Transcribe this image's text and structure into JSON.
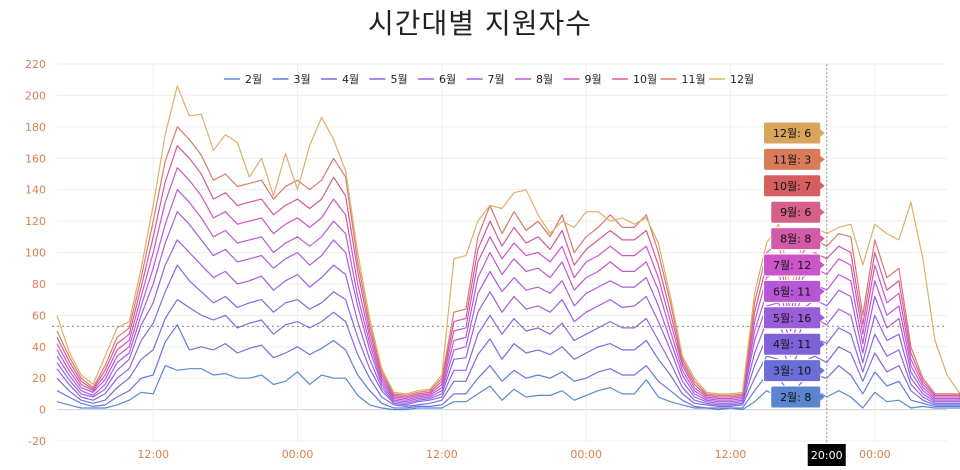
{
  "title": "시간대별 지원자수",
  "chart_data": {
    "type": "line",
    "title": "시간대별 지원자수",
    "ylim": [
      -20,
      220
    ],
    "yticks": [
      -20,
      0,
      20,
      40,
      60,
      80,
      100,
      120,
      140,
      160,
      180,
      200,
      220
    ],
    "xlim": [
      0,
      74
    ],
    "x_labels": [
      {
        "x": 8,
        "label": "12:00"
      },
      {
        "x": 20,
        "label": "00:00"
      },
      {
        "x": 32,
        "label": "12:00"
      },
      {
        "x": 44,
        "label": "00:00"
      },
      {
        "x": 56,
        "label": "12:00"
      },
      {
        "x": 68,
        "label": "00:00"
      }
    ],
    "grid": true,
    "legend_position": "top-center",
    "horizontal_ref": 53,
    "cursor": {
      "x": 64,
      "label": "20:00"
    },
    "series": [
      {
        "name": "2월",
        "color": "#5b8ad4",
        "values": [
          5,
          3,
          1,
          1,
          1,
          3,
          6,
          11,
          10,
          28,
          25,
          26,
          26,
          22,
          23,
          20,
          20,
          22,
          16,
          18,
          24,
          16,
          22,
          20,
          20,
          9,
          3,
          1,
          0,
          0,
          1,
          1,
          1,
          5,
          5,
          10,
          15,
          6,
          13,
          8,
          9,
          9,
          12,
          6,
          9,
          12,
          14,
          10,
          10,
          19,
          8,
          5,
          3,
          1,
          1,
          0,
          1,
          0,
          5,
          12,
          8,
          3,
          9,
          13,
          8,
          12,
          8,
          1,
          11,
          5,
          6,
          1,
          2,
          1,
          1,
          1,
          0
        ]
      },
      {
        "name": "3월",
        "color": "#6877e0",
        "values": [
          12,
          8,
          4,
          2,
          3,
          8,
          12,
          20,
          22,
          43,
          54,
          38,
          40,
          38,
          42,
          36,
          39,
          41,
          33,
          36,
          40,
          35,
          39,
          44,
          38,
          22,
          12,
          4,
          1,
          1,
          2,
          2,
          3,
          10,
          10,
          20,
          28,
          18,
          25,
          20,
          22,
          20,
          24,
          18,
          20,
          24,
          26,
          22,
          22,
          28,
          18,
          12,
          6,
          2,
          1,
          1,
          1,
          1,
          12,
          22,
          20,
          10,
          18,
          22,
          20,
          28,
          22,
          10,
          24,
          15,
          18,
          6,
          4,
          2,
          2,
          2,
          1
        ]
      },
      {
        "name": "4월",
        "color": "#7a6de0",
        "values": [
          20,
          12,
          6,
          4,
          6,
          14,
          20,
          32,
          38,
          58,
          70,
          65,
          60,
          57,
          60,
          52,
          55,
          57,
          48,
          54,
          56,
          52,
          56,
          62,
          56,
          35,
          20,
          8,
          3,
          2,
          3,
          4,
          6,
          18,
          18,
          35,
          45,
          32,
          42,
          36,
          38,
          35,
          40,
          32,
          36,
          40,
          42,
          38,
          38,
          44,
          32,
          22,
          10,
          4,
          3,
          2,
          2,
          3,
          20,
          34,
          32,
          18,
          30,
          34,
          30,
          40,
          36,
          18,
          36,
          24,
          28,
          12,
          6,
          3,
          3,
          3,
          3
        ]
      },
      {
        "name": "5월",
        "color": "#8b67e0",
        "values": [
          26,
          16,
          8,
          6,
          10,
          20,
          26,
          44,
          55,
          75,
          92,
          82,
          75,
          68,
          72,
          65,
          68,
          70,
          62,
          68,
          70,
          64,
          68,
          75,
          70,
          46,
          26,
          12,
          4,
          3,
          5,
          6,
          8,
          25,
          25,
          48,
          60,
          48,
          58,
          50,
          52,
          48,
          55,
          44,
          48,
          52,
          56,
          52,
          52,
          58,
          44,
          30,
          14,
          6,
          4,
          3,
          3,
          4,
          28,
          46,
          44,
          26,
          42,
          46,
          42,
          52,
          48,
          24,
          48,
          34,
          38,
          16,
          8,
          4,
          4,
          4,
          4
        ]
      },
      {
        "name": "6월",
        "color": "#9a62de",
        "values": [
          30,
          19,
          10,
          8,
          13,
          25,
          32,
          54,
          68,
          92,
          108,
          100,
          92,
          84,
          88,
          80,
          82,
          85,
          76,
          82,
          86,
          78,
          84,
          92,
          86,
          56,
          32,
          14,
          5,
          4,
          6,
          7,
          10,
          32,
          33,
          62,
          75,
          62,
          72,
          64,
          66,
          62,
          70,
          56,
          62,
          66,
          70,
          65,
          66,
          72,
          56,
          38,
          18,
          8,
          5,
          4,
          4,
          5,
          36,
          56,
          56,
          34,
          54,
          58,
          54,
          64,
          60,
          30,
          60,
          44,
          48,
          20,
          10,
          5,
          5,
          5,
          5
        ]
      },
      {
        "name": "7월",
        "color": "#a95edc",
        "values": [
          34,
          22,
          12,
          9,
          16,
          30,
          36,
          60,
          80,
          106,
          126,
          118,
          108,
          98,
          102,
          94,
          96,
          98,
          90,
          96,
          100,
          92,
          98,
          108,
          100,
          66,
          38,
          16,
          6,
          5,
          7,
          8,
          12,
          38,
          40,
          74,
          88,
          75,
          84,
          76,
          78,
          74,
          82,
          66,
          74,
          78,
          82,
          78,
          78,
          84,
          66,
          44,
          22,
          10,
          6,
          5,
          5,
          6,
          44,
          66,
          68,
          42,
          64,
          70,
          66,
          76,
          72,
          36,
          72,
          52,
          58,
          24,
          12,
          6,
          6,
          6,
          10
        ]
      },
      {
        "name": "8월",
        "color": "#bb5ad6",
        "values": [
          38,
          25,
          14,
          11,
          19,
          34,
          40,
          66,
          90,
          118,
          140,
          132,
          122,
          110,
          114,
          106,
          108,
          110,
          100,
          106,
          110,
          104,
          110,
          120,
          112,
          72,
          42,
          18,
          7,
          6,
          8,
          9,
          14,
          44,
          46,
          84,
          100,
          86,
          96,
          88,
          90,
          84,
          94,
          76,
          84,
          88,
          94,
          88,
          88,
          94,
          76,
          50,
          25,
          12,
          7,
          6,
          6,
          7,
          50,
          74,
          78,
          50,
          74,
          80,
          76,
          86,
          82,
          42,
          82,
          60,
          66,
          28,
          14,
          7,
          7,
          7,
          13
        ]
      },
      {
        "name": "9월",
        "color": "#cc57c8",
        "values": [
          42,
          28,
          16,
          12,
          22,
          38,
          44,
          72,
          100,
          132,
          154,
          146,
          136,
          122,
          126,
          118,
          120,
          122,
          112,
          118,
          122,
          116,
          122,
          134,
          124,
          80,
          46,
          20,
          8,
          7,
          9,
          10,
          16,
          50,
          52,
          94,
          110,
          96,
          106,
          98,
          100,
          94,
          104,
          84,
          94,
          98,
          104,
          98,
          98,
          104,
          84,
          56,
          28,
          14,
          8,
          7,
          7,
          8,
          56,
          84,
          88,
          56,
          84,
          90,
          86,
          96,
          92,
          48,
          92,
          68,
          74,
          32,
          16,
          8,
          8,
          8,
          15
        ]
      },
      {
        "name": "10월",
        "color": "#d65a98",
        "values": [
          46,
          31,
          18,
          13,
          25,
          42,
          48,
          78,
          110,
          145,
          168,
          160,
          150,
          134,
          138,
          130,
          132,
          134,
          124,
          130,
          134,
          128,
          134,
          148,
          136,
          88,
          50,
          22,
          9,
          8,
          10,
          11,
          18,
          56,
          58,
          102,
          120,
          104,
          116,
          106,
          110,
          102,
          114,
          92,
          102,
          108,
          114,
          108,
          108,
          114,
          92,
          62,
          30,
          16,
          9,
          8,
          8,
          9,
          62,
          92,
          98,
          62,
          92,
          100,
          96,
          104,
          100,
          54,
          100,
          76,
          82,
          36,
          18,
          9,
          9,
          9,
          18
        ]
      },
      {
        "name": "11월",
        "color": "#d97a6a",
        "values": [
          50,
          34,
          20,
          14,
          28,
          46,
          52,
          84,
          120,
          158,
          180,
          172,
          162,
          146,
          150,
          142,
          144,
          146,
          134,
          142,
          146,
          140,
          146,
          160,
          148,
          94,
          54,
          24,
          10,
          9,
          11,
          12,
          20,
          62,
          64,
          110,
          130,
          112,
          126,
          114,
          120,
          110,
          124,
          100,
          110,
          116,
          124,
          116,
          116,
          124,
          100,
          68,
          32,
          18,
          10,
          9,
          9,
          10,
          68,
          100,
          106,
          68,
          100,
          108,
          104,
          112,
          110,
          60,
          108,
          84,
          90,
          40,
          20,
          10,
          10,
          10,
          21
        ]
      },
      {
        "name": "12월",
        "color": "#ddb06a",
        "values": [
          60,
          37,
          22,
          16,
          34,
          52,
          56,
          90,
          130,
          175,
          206,
          187,
          188,
          165,
          175,
          170,
          148,
          160,
          136,
          163,
          140,
          168,
          186,
          172,
          152,
          100,
          58,
          26,
          11,
          10,
          12,
          13,
          22,
          96,
          98,
          120,
          130,
          128,
          138,
          140,
          124,
          112,
          120,
          116,
          126,
          126,
          120,
          122,
          118,
          122,
          106,
          72,
          34,
          20,
          11,
          10,
          10,
          11,
          74,
          106,
          118,
          76,
          106,
          116,
          112,
          116,
          118,
          92,
          118,
          112,
          108,
          132,
          96,
          44,
          22,
          11,
          11,
          24
        ]
      }
    ],
    "tooltip": {
      "x": 64,
      "entries": [
        {
          "series": "12월",
          "value": 6,
          "label": "12월: 6",
          "bg": "#d9a45c"
        },
        {
          "series": "11월",
          "value": 3,
          "label": "11월: 3",
          "bg": "#d97a5a"
        },
        {
          "series": "10월",
          "value": 7,
          "label": "10월: 7",
          "bg": "#d65e5e"
        },
        {
          "series": "9월",
          "value": 6,
          "label": "9월: 6",
          "bg": "#d6608a"
        },
        {
          "series": "8월",
          "value": 8,
          "label": "8월: 8",
          "bg": "#d35aa8"
        },
        {
          "series": "7월",
          "value": 12,
          "label": "7월: 12",
          "bg": "#cc55c8"
        },
        {
          "series": "6월",
          "value": 11,
          "label": "6월: 11",
          "bg": "#b857d6"
        },
        {
          "series": "5월",
          "value": 16,
          "label": "5월: 16",
          "bg": "#9a5ed8"
        },
        {
          "series": "4월",
          "value": 11,
          "label": "4월: 11",
          "bg": "#8062d8"
        },
        {
          "series": "3월",
          "value": 10,
          "label": "3월: 10",
          "bg": "#6c6ed8"
        },
        {
          "series": "2월",
          "value": 8,
          "label": "2월: 8",
          "bg": "#5b86cf"
        }
      ]
    }
  }
}
